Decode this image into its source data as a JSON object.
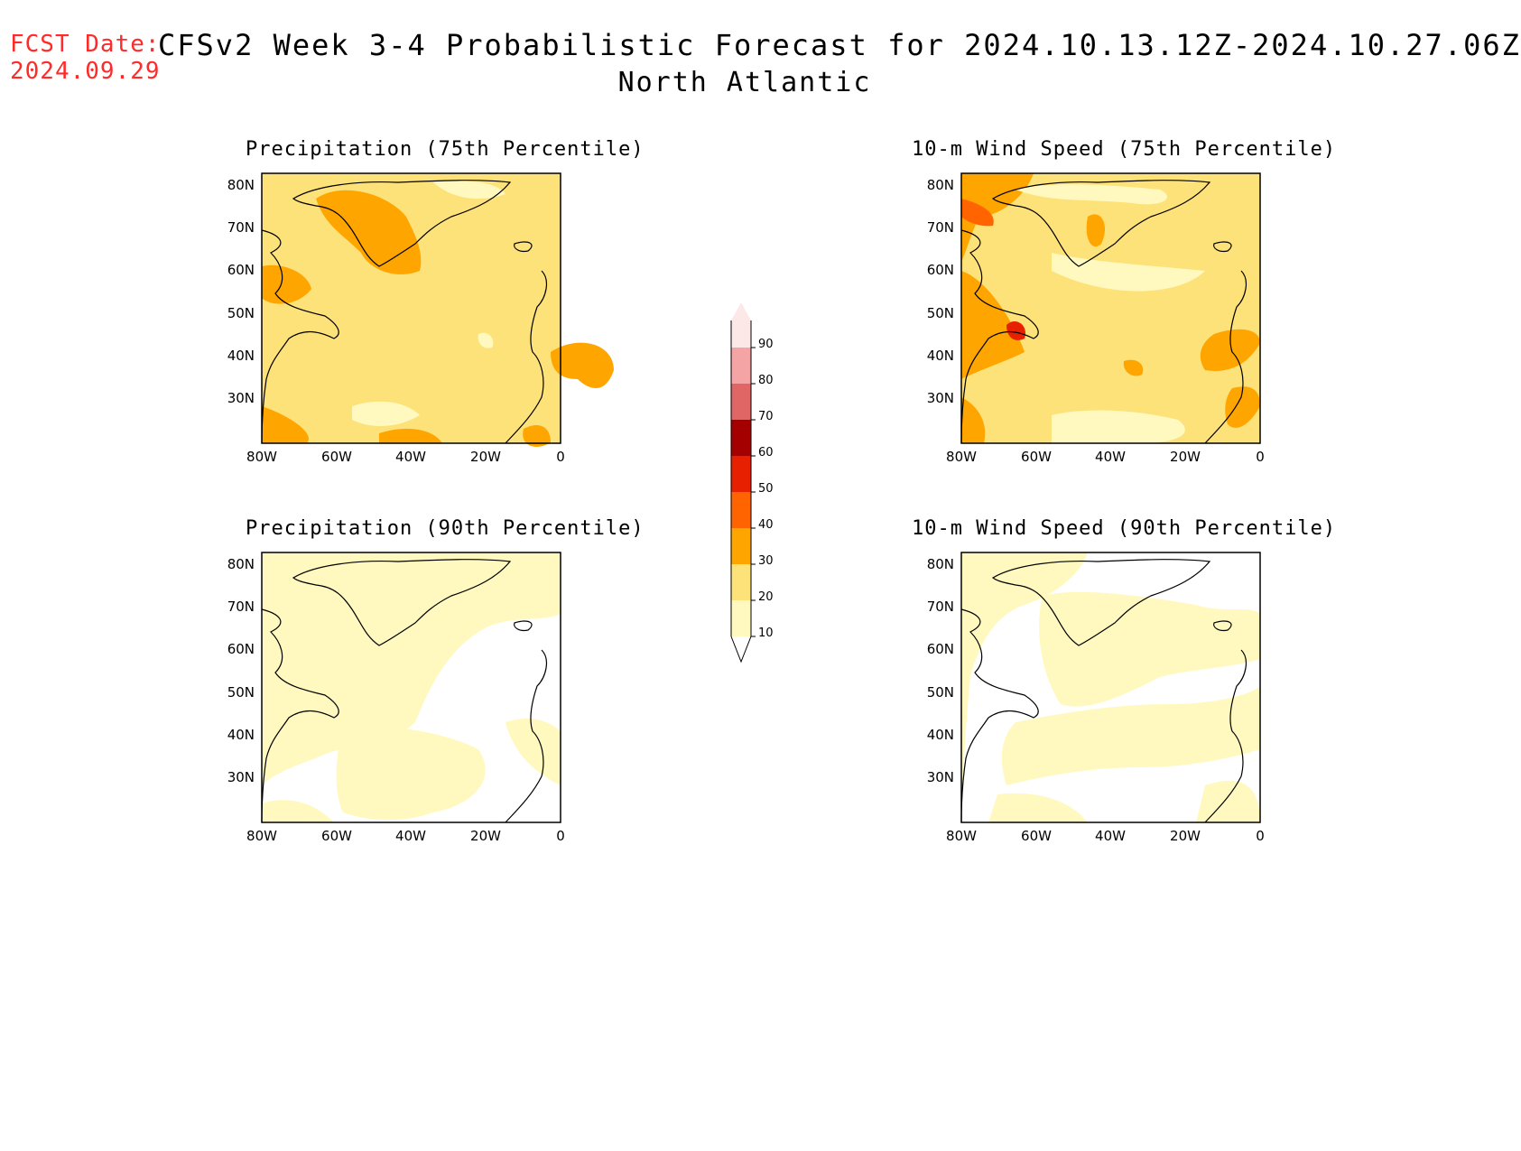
{
  "header": {
    "fcst_label": "FCST Date:",
    "fcst_date": "2024.09.29",
    "title": "CFSv2 Week 3-4 Probabilistic Forecast for 2024.10.13.12Z-2024.10.27.06Z",
    "region": "North Atlantic"
  },
  "panels": [
    {
      "title": "Precipitation (75th Percentile)"
    },
    {
      "title": "10-m Wind Speed (75th Percentile)"
    },
    {
      "title": "Precipitation (90th Percentile)"
    },
    {
      "title": "10-m Wind Speed (90th Percentile)"
    }
  ],
  "axes": {
    "lat_labels": [
      "80N",
      "70N",
      "60N",
      "50N",
      "40N",
      "30N"
    ],
    "lon_labels": [
      "80W",
      "60W",
      "40W",
      "20W",
      "0"
    ]
  },
  "colorbar": {
    "levels": [
      "10",
      "20",
      "30",
      "40",
      "50",
      "60",
      "70",
      "80",
      "90"
    ],
    "colors": [
      "#fff9c0",
      "#fde27a",
      "#ffa500",
      "#ff6400",
      "#e62000",
      "#a50000",
      "#e06666",
      "#f4a4a4",
      "#fde8e8"
    ]
  }
}
